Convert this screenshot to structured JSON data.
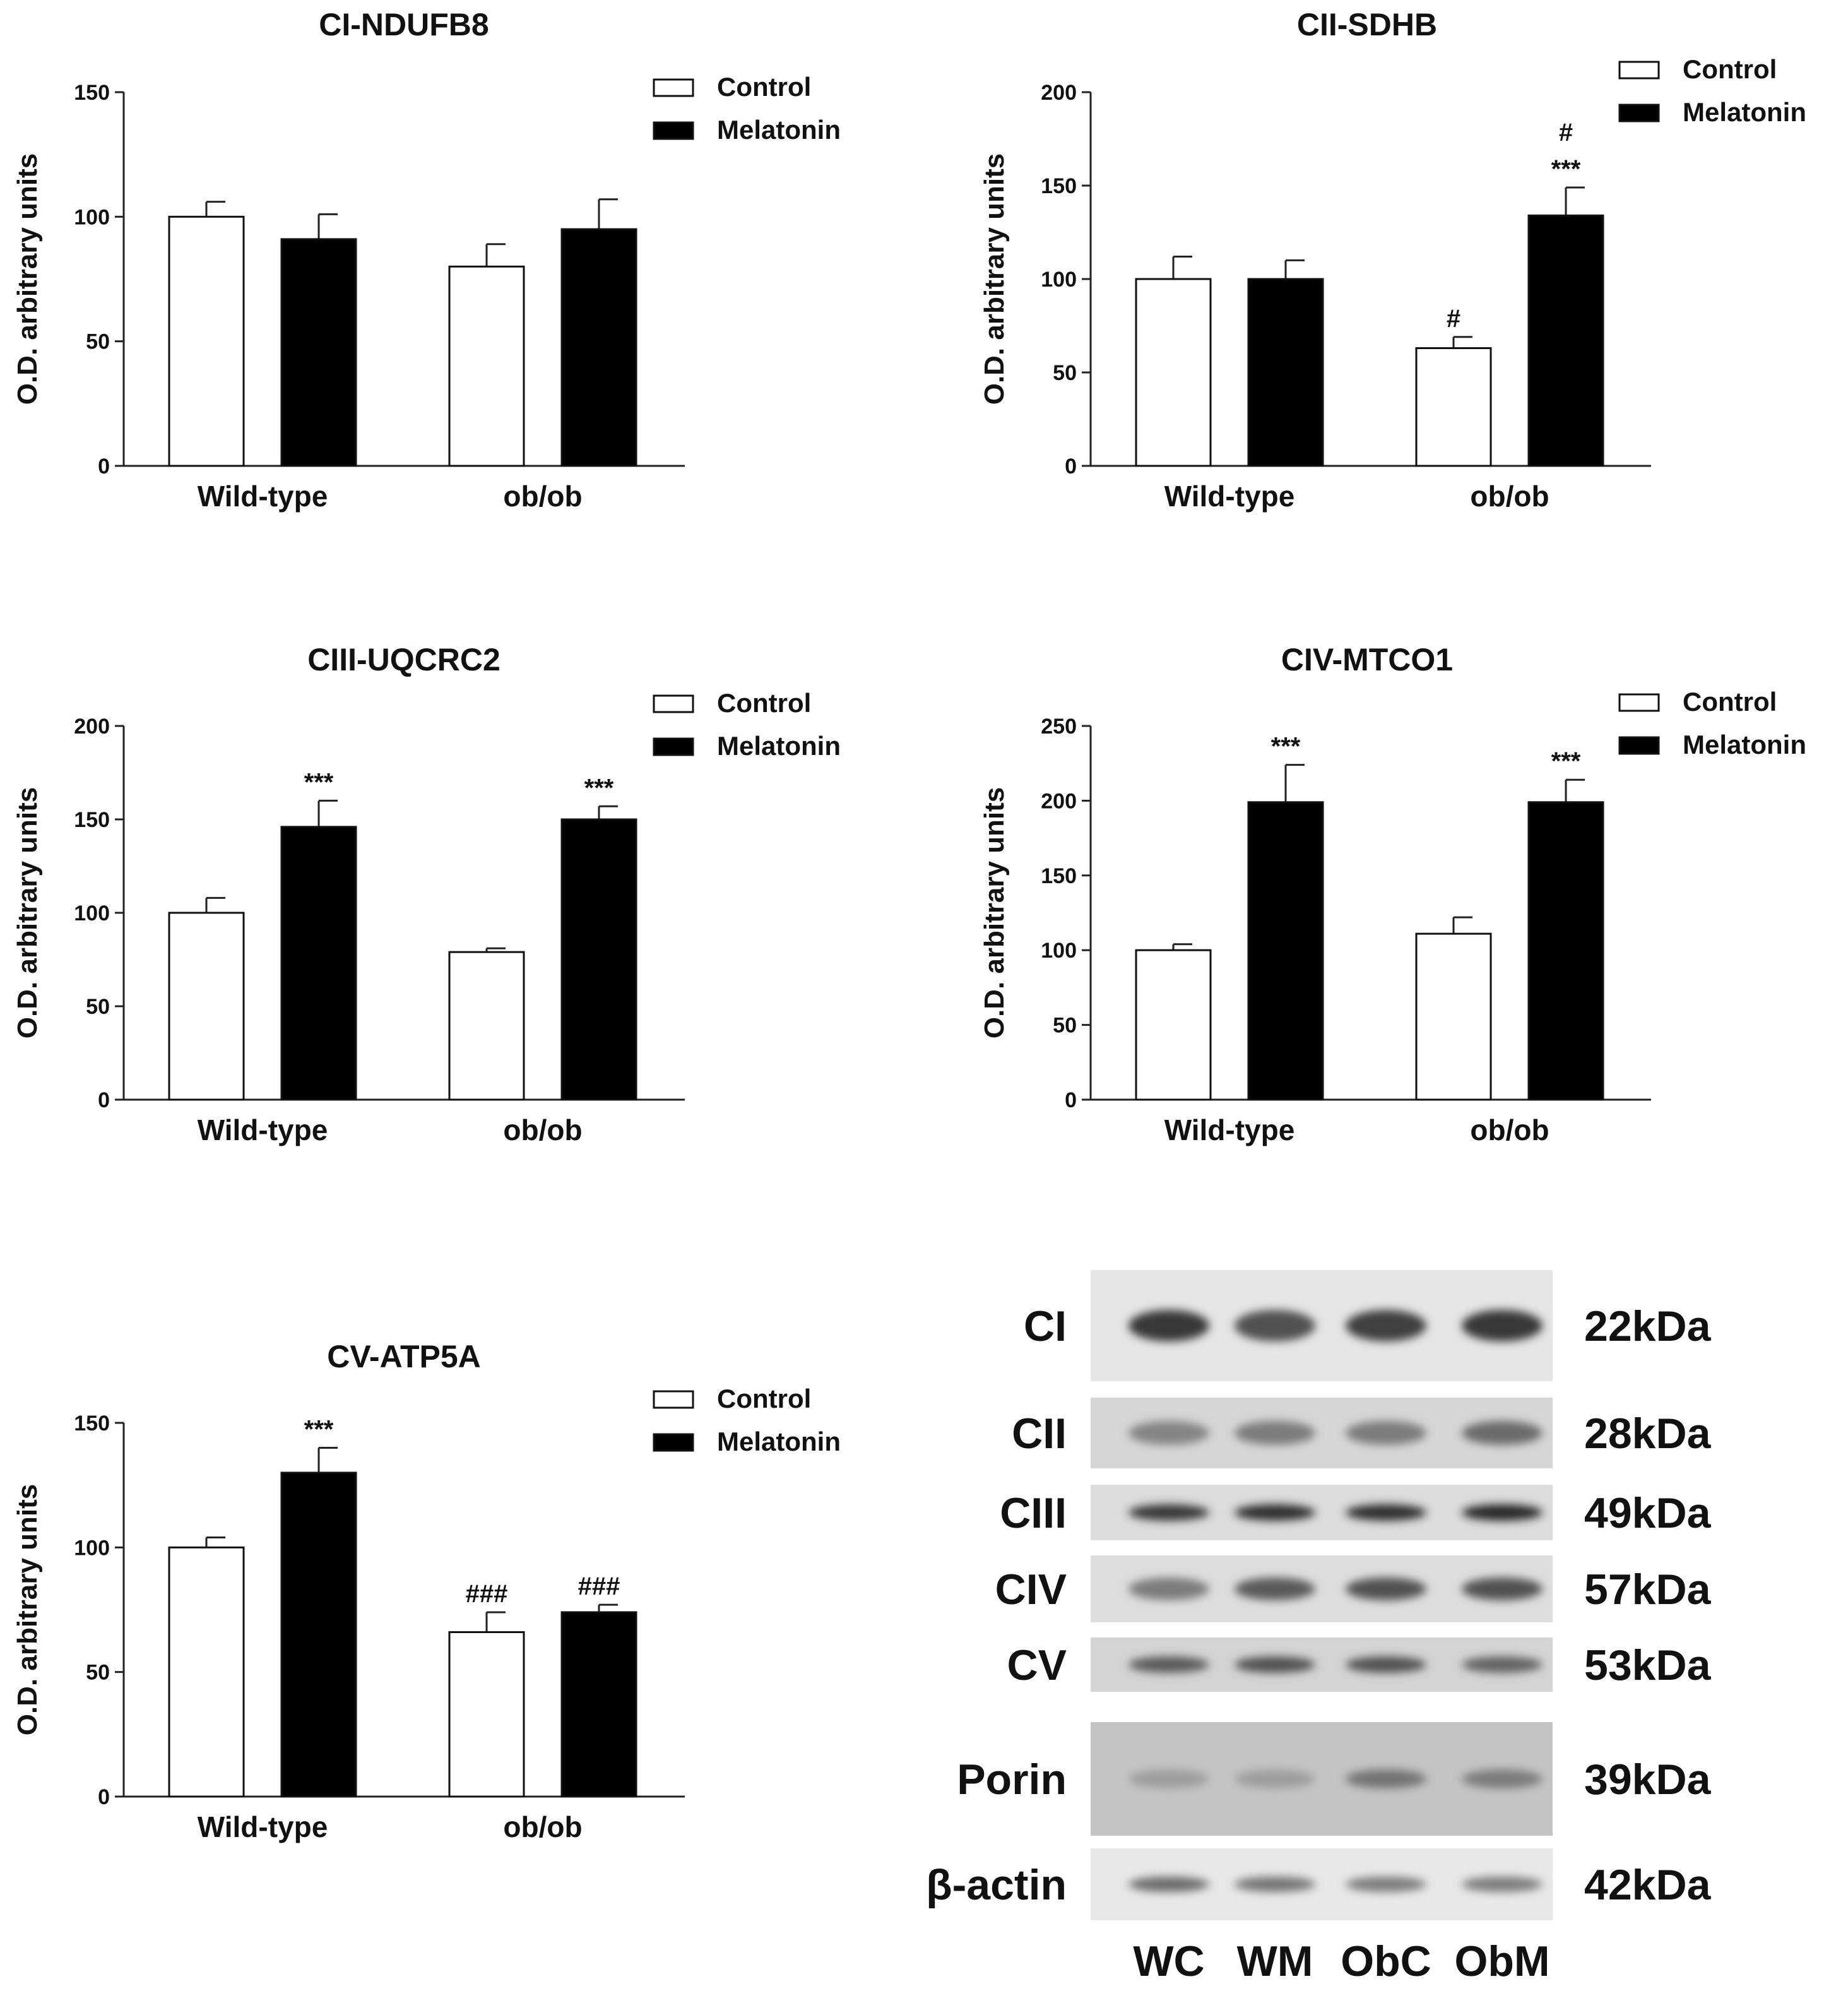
{
  "chart_data": [
    {
      "type": "bar",
      "title": "CI-NDUFB8",
      "ylabel": "O.D. arbitrary units",
      "categories": [
        "Wild-type",
        "ob/ob"
      ],
      "ylim": [
        0,
        150
      ],
      "yticks": [
        "0",
        "50",
        "100",
        "150"
      ],
      "legend": [
        "Control",
        "Melatonin"
      ],
      "legend_position": "top-right",
      "series": [
        {
          "name": "Control",
          "values": [
            100,
            80
          ],
          "errors": [
            6,
            9
          ],
          "color": "#ffffff"
        },
        {
          "name": "Melatonin",
          "values": [
            91,
            95
          ],
          "errors": [
            10,
            12
          ],
          "color": "#000000"
        }
      ],
      "annotations": []
    },
    {
      "type": "bar",
      "title": "CII-SDHB",
      "ylabel": "O.D. arbitrary units",
      "categories": [
        "Wild-type",
        "ob/ob"
      ],
      "ylim": [
        0,
        200
      ],
      "yticks": [
        "0",
        "50",
        "100",
        "150",
        "200"
      ],
      "legend": [
        "Control",
        "Melatonin"
      ],
      "legend_position": "top-right",
      "series": [
        {
          "name": "Control",
          "values": [
            100,
            63
          ],
          "errors": [
            12,
            6
          ],
          "color": "#ffffff"
        },
        {
          "name": "Melatonin",
          "values": [
            100,
            134
          ],
          "errors": [
            10,
            15
          ],
          "color": "#000000"
        }
      ],
      "annotations": [
        {
          "text": "#",
          "group": 1,
          "series": 0
        },
        {
          "text": "***",
          "group": 1,
          "series": 1
        },
        {
          "text": "#",
          "group": 1,
          "series": 1
        }
      ]
    },
    {
      "type": "bar",
      "title": "CIII-UQCRC2",
      "ylabel": "O.D. arbitrary units",
      "categories": [
        "Wild-type",
        "ob/ob"
      ],
      "ylim": [
        0,
        200
      ],
      "yticks": [
        "0",
        "50",
        "100",
        "150",
        "200"
      ],
      "legend": [
        "Control",
        "Melatonin"
      ],
      "legend_position": "top-right",
      "series": [
        {
          "name": "Control",
          "values": [
            100,
            79
          ],
          "errors": [
            8,
            2
          ],
          "color": "#ffffff"
        },
        {
          "name": "Melatonin",
          "values": [
            146,
            150
          ],
          "errors": [
            14,
            7
          ],
          "color": "#000000"
        }
      ],
      "annotations": [
        {
          "text": "***",
          "group": 0,
          "series": 1
        },
        {
          "text": "***",
          "group": 1,
          "series": 1
        }
      ]
    },
    {
      "type": "bar",
      "title": "CIV-MTCO1",
      "ylabel": "O.D. arbitrary units",
      "categories": [
        "Wild-type",
        "ob/ob"
      ],
      "ylim": [
        0,
        250
      ],
      "yticks": [
        "0",
        "50",
        "100",
        "150",
        "200",
        "250"
      ],
      "legend": [
        "Control",
        "Melatonin"
      ],
      "legend_position": "top-right",
      "series": [
        {
          "name": "Control",
          "values": [
            100,
            111
          ],
          "errors": [
            4,
            11
          ],
          "color": "#ffffff"
        },
        {
          "name": "Melatonin",
          "values": [
            199,
            199
          ],
          "errors": [
            25,
            15
          ],
          "color": "#000000"
        }
      ],
      "annotations": [
        {
          "text": "***",
          "group": 0,
          "series": 1
        },
        {
          "text": "***",
          "group": 1,
          "series": 1
        }
      ]
    },
    {
      "type": "bar",
      "title": "CV-ATP5A",
      "ylabel": "O.D. arbitrary units",
      "categories": [
        "Wild-type",
        "ob/ob"
      ],
      "ylim": [
        0,
        150
      ],
      "yticks": [
        "0",
        "50",
        "100",
        "150"
      ],
      "legend": [
        "Control",
        "Melatonin"
      ],
      "legend_position": "top-right",
      "series": [
        {
          "name": "Control",
          "values": [
            100,
            66
          ],
          "errors": [
            4,
            8
          ],
          "color": "#ffffff"
        },
        {
          "name": "Melatonin",
          "values": [
            130,
            74
          ],
          "errors": [
            10,
            3
          ],
          "color": "#000000"
        }
      ],
      "annotations": [
        {
          "text": "***",
          "group": 0,
          "series": 1
        },
        {
          "text": "###",
          "group": 1,
          "series": 0
        },
        {
          "text": "###",
          "group": 1,
          "series": 1
        }
      ]
    }
  ],
  "western_blot": {
    "lanes": [
      "WC",
      "WM",
      "ObC",
      "ObM"
    ],
    "rows": [
      {
        "protein": "CI",
        "size": "22kDa"
      },
      {
        "protein": "CII",
        "size": "28kDa"
      },
      {
        "protein": "CIII",
        "size": "49kDa"
      },
      {
        "protein": "CIV",
        "size": "57kDa"
      },
      {
        "protein": "CV",
        "size": "53kDa"
      },
      {
        "protein": "Porin",
        "size": "39kDa"
      },
      {
        "protein": "β-actin",
        "size": "42kDa"
      }
    ]
  }
}
